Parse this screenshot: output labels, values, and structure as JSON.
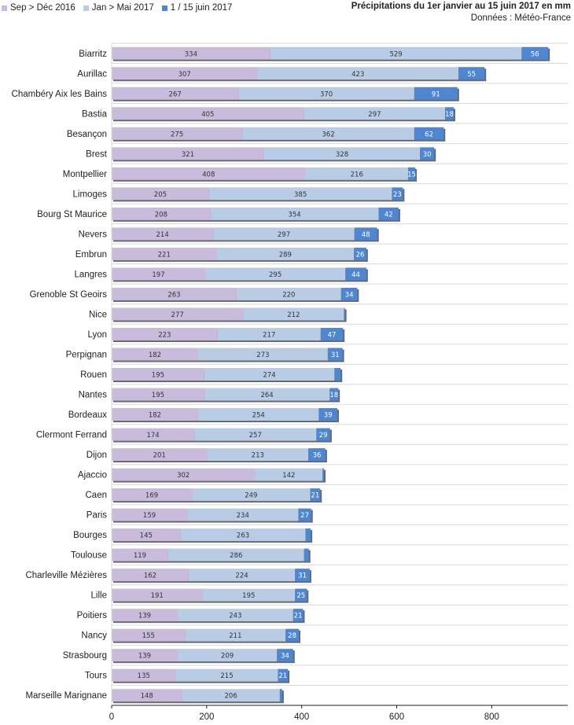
{
  "chart_data": {
    "type": "bar",
    "orientation": "horizontal",
    "stacked": true,
    "title": "Précipitations du 1er janvier au 15 juin 2017 en mm",
    "subtitle": "Données : Météo-France",
    "legend_position": "top-left",
    "xlim": [
      0,
      960
    ],
    "xticks": [
      0,
      200,
      400,
      600,
      800
    ],
    "categories": [
      "Biarritz",
      "Aurillac",
      "Chambéry Aix les Bains",
      "Bastia",
      "Besançon",
      "Brest",
      "Montpellier",
      "Limoges",
      "Bourg St Maurice",
      "Nevers",
      "Embrun",
      "Langres",
      "Grenoble St Geoirs",
      "Nice",
      "Lyon",
      "Perpignan",
      "Rouen",
      "Nantes",
      "Bordeaux",
      "Clermont Ferrand",
      "Dijon",
      "Ajaccio",
      "Caen",
      "Paris",
      "Bourges",
      "Toulouse",
      "Charleville Mézières",
      "Lille",
      "Poitiers",
      "Nancy",
      "Strasbourg",
      "Tours",
      "Marseille Marignane"
    ],
    "series": [
      {
        "name": "Sep > Déc 2016",
        "color": "#c9bbdc",
        "values": [
          334,
          307,
          267,
          405,
          275,
          321,
          408,
          205,
          208,
          214,
          221,
          197,
          263,
          277,
          223,
          182,
          195,
          195,
          182,
          174,
          201,
          302,
          169,
          159,
          145,
          119,
          162,
          191,
          139,
          155,
          139,
          135,
          148
        ]
      },
      {
        "name": "Jan > Mai 2017",
        "color": "#b9cce6",
        "values": [
          529,
          423,
          370,
          297,
          362,
          328,
          216,
          385,
          354,
          297,
          289,
          295,
          220,
          212,
          217,
          273,
          274,
          264,
          254,
          257,
          213,
          142,
          249,
          234,
          263,
          286,
          224,
          195,
          243,
          211,
          209,
          215,
          206
        ]
      },
      {
        "name": "1 / 15 juin 2017",
        "color": "#4f86d0",
        "values": [
          56,
          55,
          91,
          18,
          62,
          30,
          15,
          23,
          42,
          48,
          26,
          44,
          34,
          2,
          47,
          31,
          13,
          18,
          39,
          29,
          36,
          3,
          21,
          27,
          11,
          10,
          31,
          25,
          21,
          28,
          34,
          21,
          5
        ],
        "value_labels": [
          "56",
          "55",
          "91",
          "18",
          "62",
          "30",
          "15",
          "23",
          "42",
          "48",
          "26",
          "44",
          "34",
          "",
          "47",
          "31",
          "",
          "18",
          "39",
          "29",
          "36",
          "",
          "21",
          "27",
          "",
          "",
          "31",
          "25",
          "21",
          "28",
          "34",
          "21",
          ""
        ]
      }
    ],
    "grid": "horizontal row separators"
  },
  "colors": {
    "series1": "#c9bbdc",
    "series2": "#b9cce6",
    "series3": "#4f86d0",
    "shadow": "#6a6a6a",
    "axis": "#222222",
    "row_line": "#d8d8d8"
  }
}
